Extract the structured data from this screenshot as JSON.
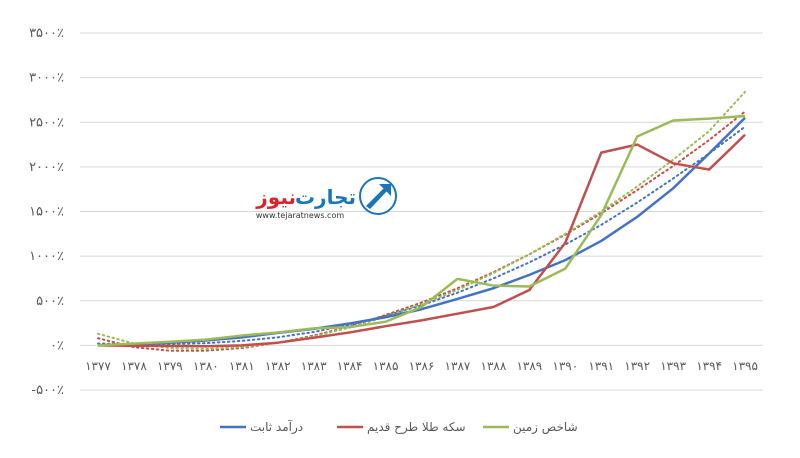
{
  "chart_data": {
    "type": "line",
    "categories": [
      "۱۳۷۷",
      "۱۳۷۸",
      "۱۳۷۹",
      "۱۳۸۰",
      "۱۳۸۱",
      "۱۳۸۲",
      "۱۳۸۳",
      "۱۳۸۴",
      "۱۳۸۵",
      "۱۳۸۶",
      "۱۳۸۷",
      "۱۳۸۸",
      "۱۳۸۹",
      "۱۳۹۰",
      "۱۳۹۱",
      "۱۳۹۲",
      "۱۳۹۳",
      "۱۳۹۴",
      "۱۳۹۵"
    ],
    "y_ticks": [
      {
        "value": 3500,
        "label": "۳۵۰۰٪"
      },
      {
        "value": 3000,
        "label": "۳۰۰۰٪"
      },
      {
        "value": 2500,
        "label": "۲۵۰۰٪"
      },
      {
        "value": 2000,
        "label": "۲۰۰۰٪"
      },
      {
        "value": 1500,
        "label": "۱۵۰۰٪"
      },
      {
        "value": 1000,
        "label": "۱۰۰۰٪"
      },
      {
        "value": 500,
        "label": "۵۰۰٪"
      },
      {
        "value": 0,
        "label": "۰٪"
      },
      {
        "value": -500,
        "label": "-۵۰۰٪"
      }
    ],
    "ylim": [
      -500,
      3500
    ],
    "grid": true,
    "legend_position": "bottom",
    "series": [
      {
        "name": "درآمد ثابت",
        "color": "#4472C4",
        "values": [
          0,
          10,
          30,
          55,
          90,
          140,
          185,
          245,
          315,
          405,
          520,
          640,
          790,
          955,
          1170,
          1440,
          1760,
          2150,
          2550
        ],
        "trend_values": [
          20,
          15,
          15,
          25,
          50,
          90,
          150,
          230,
          330,
          450,
          590,
          750,
          930,
          1130,
          1350,
          1600,
          1870,
          2150,
          2450
        ]
      },
      {
        "name": "سکه طلا طرح قدیم",
        "color": "#C0504D",
        "values": [
          0,
          -5,
          -5,
          -10,
          0,
          30,
          85,
          145,
          215,
          280,
          355,
          430,
          620,
          1150,
          2160,
          2250,
          2040,
          1970,
          2360
        ],
        "trend_values": [
          80,
          -20,
          -60,
          -60,
          -30,
          30,
          110,
          210,
          340,
          480,
          640,
          820,
          1020,
          1240,
          1480,
          1740,
          2010,
          2300,
          2620
        ]
      },
      {
        "name": "شاخص زمین",
        "color": "#9BBB59",
        "values": [
          0,
          20,
          40,
          65,
          110,
          145,
          190,
          205,
          265,
          430,
          745,
          670,
          660,
          860,
          1460,
          2340,
          2520,
          2540,
          2570
        ],
        "trend_values": [
          130,
          20,
          -30,
          -40,
          -20,
          30,
          100,
          200,
          320,
          460,
          620,
          810,
          1020,
          1250,
          1500,
          1780,
          2080,
          2400,
          2840
        ]
      }
    ]
  },
  "logo": {
    "name_part1": "تجارت",
    "name_part2": "نیوز",
    "url": "www.tejaratnews.com",
    "primary_color": "#1b75bb",
    "accent_color": "#e31e24"
  }
}
